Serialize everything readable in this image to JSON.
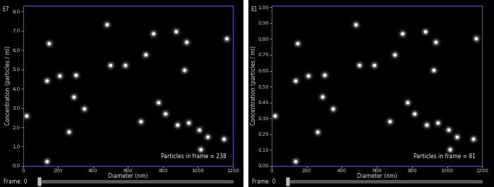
{
  "chart_data": [
    {
      "type": "scatter",
      "title": "E7",
      "x_label": "Diameter (nm)",
      "y_label": "Concentration (particles / ml)",
      "annotations": [
        "Particles in frame = 238",
        "Frame: 0"
      ],
      "xlim": [
        0,
        1200
      ],
      "ylim": [
        0,
        8.3
      ],
      "xticks": [
        0,
        200,
        400,
        600,
        800,
        1000,
        1200
      ],
      "yticks": [
        {
          "value": 0,
          "label": "0.0"
        },
        {
          "value": 1,
          "label": "1.0"
        },
        {
          "value": 2,
          "label": "2.0"
        },
        {
          "value": 3,
          "label": "3.0"
        },
        {
          "value": 4,
          "label": "4.0"
        },
        {
          "value": 5,
          "label": "5.0"
        },
        {
          "value": 6,
          "label": "6.0"
        },
        {
          "value": 7,
          "label": "7.0"
        },
        {
          "value": 8,
          "label": "8.0"
        }
      ],
      "color": "#ffffff",
      "marker": "o",
      "x": [
        20,
        137,
        137,
        149,
        210,
        303,
        291,
        351,
        501,
        586,
        703,
        747,
        877,
        937,
        925,
        776,
        675,
        816,
        885,
        949,
        1010,
        1058,
        1151,
        1167,
        1018,
        263,
        481
      ],
      "values": [
        2.58,
        0.22,
        4.4,
        6.33,
        4.65,
        4.69,
        3.56,
        2.95,
        5.2,
        5.2,
        5.75,
        6.84,
        6.95,
        6.4,
        4.95,
        3.27,
        2.29,
        2.69,
        2.11,
        2.22,
        1.85,
        1.49,
        1.38,
        6.58,
        0.84,
        1.75,
        7.31
      ]
    },
    {
      "type": "scatter",
      "title": "E1",
      "x_label": "Diameter (nm)",
      "y_label": "Concentration (particles / ml)",
      "annotations": [
        "Particles in frame = 81",
        "Frame: 0"
      ],
      "xlim": [
        0,
        1200
      ],
      "ylim": [
        0,
        1.01
      ],
      "xticks": [
        0,
        200,
        400,
        600,
        800,
        1000,
        1200
      ],
      "yticks": [
        {
          "value": 0,
          "label": "0.00"
        },
        {
          "value": 0.1,
          "label": "0.10"
        },
        {
          "value": 0.2,
          "label": "0.20"
        },
        {
          "value": 0.3,
          "label": "0.30"
        },
        {
          "value": 0.4,
          "label": "0.40"
        },
        {
          "value": 0.5,
          "label": "0.50"
        },
        {
          "value": 0.6,
          "label": "0.60"
        },
        {
          "value": 0.7,
          "label": "0.70"
        },
        {
          "value": 0.8,
          "label": "0.80"
        },
        {
          "value": 0.9,
          "label": "0.90"
        },
        {
          "value": 1.0,
          "label": "1.00"
        }
      ],
      "color": "#ffffff",
      "marker": "o",
      "x": [
        20,
        137,
        137,
        149,
        210,
        303,
        291,
        351,
        501,
        586,
        703,
        747,
        877,
        937,
        925,
        776,
        675,
        816,
        885,
        949,
        1010,
        1058,
        1151,
        1167,
        1018,
        263,
        481
      ],
      "values": [
        0.314,
        0.027,
        0.535,
        0.77,
        0.566,
        0.571,
        0.434,
        0.358,
        0.633,
        0.633,
        0.699,
        0.832,
        0.845,
        0.779,
        0.602,
        0.398,
        0.279,
        0.327,
        0.257,
        0.27,
        0.226,
        0.181,
        0.168,
        0.801,
        0.102,
        0.212,
        0.889
      ]
    }
  ]
}
